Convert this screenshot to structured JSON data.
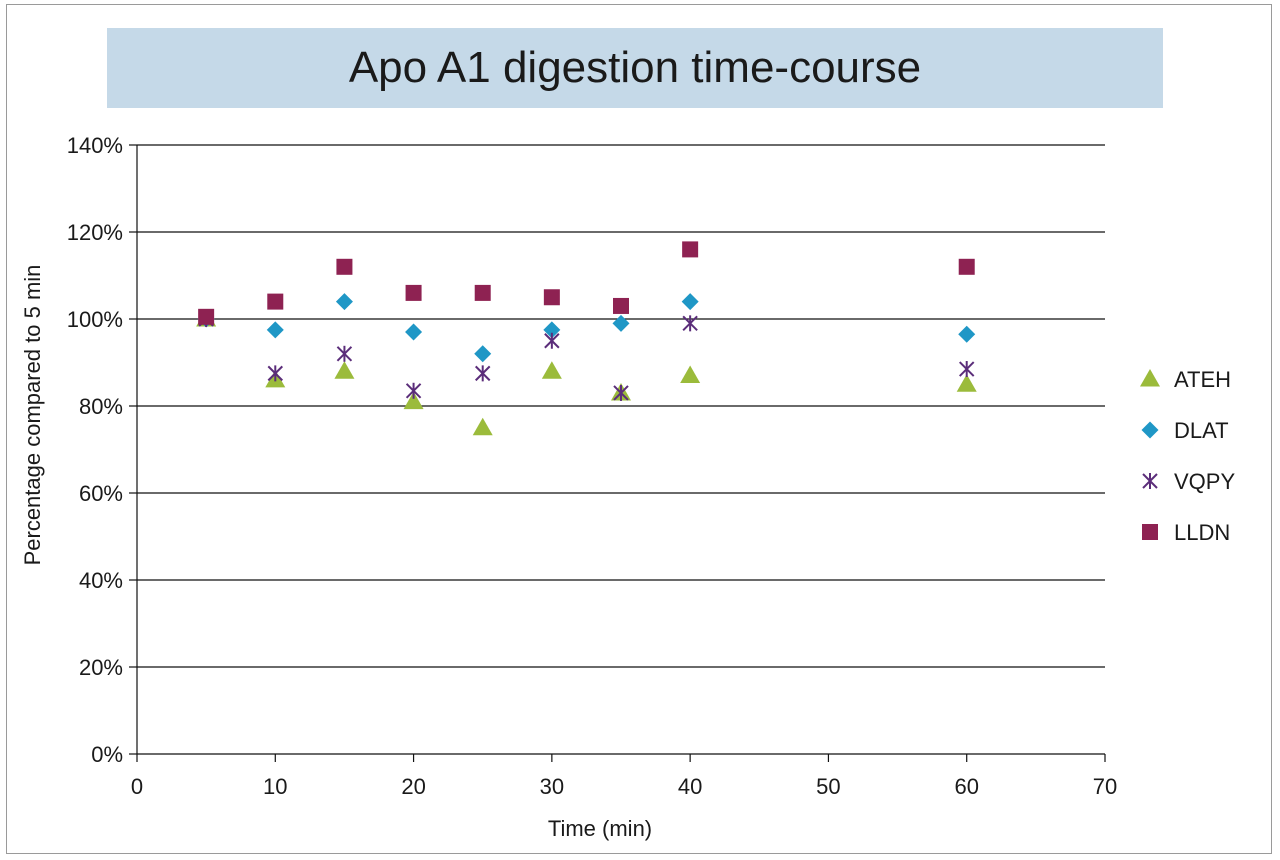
{
  "chart_data": {
    "type": "scatter",
    "title": "Apo A1 digestion time-course",
    "xlabel": "Time (min)",
    "ylabel": "Percentage compared to 5 min",
    "xlim": [
      0,
      70
    ],
    "ylim": [
      0,
      140
    ],
    "x_ticks": [
      0,
      10,
      20,
      30,
      40,
      50,
      60,
      70
    ],
    "y_ticks": [
      0,
      20,
      40,
      60,
      80,
      100,
      120,
      140
    ],
    "y_tick_labels": [
      "0%",
      "20%",
      "40%",
      "60%",
      "80%",
      "100%",
      "120%",
      "140%"
    ],
    "grid": "horizontal",
    "legend_position": "right",
    "series": [
      {
        "name": "ATEH",
        "marker": "triangle",
        "color": "#9bbb3b",
        "points": [
          [
            5,
            100
          ],
          [
            10,
            86
          ],
          [
            15,
            88
          ],
          [
            20,
            81
          ],
          [
            25,
            75
          ],
          [
            30,
            88
          ],
          [
            35,
            83
          ],
          [
            40,
            87
          ],
          [
            60,
            85
          ]
        ]
      },
      {
        "name": "DLAT",
        "marker": "diamond",
        "color": "#1f97c6",
        "points": [
          [
            5,
            100
          ],
          [
            10,
            97.5
          ],
          [
            15,
            104
          ],
          [
            20,
            97
          ],
          [
            25,
            92
          ],
          [
            30,
            97.5
          ],
          [
            35,
            99
          ],
          [
            40,
            104
          ],
          [
            60,
            96.5
          ]
        ]
      },
      {
        "name": "VQPY",
        "marker": "asterisk",
        "color": "#5b2d7a",
        "points": [
          [
            5,
            100
          ],
          [
            10,
            87.5
          ],
          [
            15,
            92
          ],
          [
            20,
            83.5
          ],
          [
            25,
            87.5
          ],
          [
            30,
            95
          ],
          [
            35,
            83
          ],
          [
            40,
            99
          ],
          [
            60,
            88.5
          ]
        ]
      },
      {
        "name": "LLDN",
        "marker": "square",
        "color": "#8e2252",
        "points": [
          [
            5,
            100.5
          ],
          [
            10,
            104
          ],
          [
            15,
            112
          ],
          [
            20,
            106
          ],
          [
            25,
            106
          ],
          [
            30,
            105
          ],
          [
            35,
            103
          ],
          [
            40,
            116
          ],
          [
            60,
            112
          ]
        ]
      }
    ]
  }
}
